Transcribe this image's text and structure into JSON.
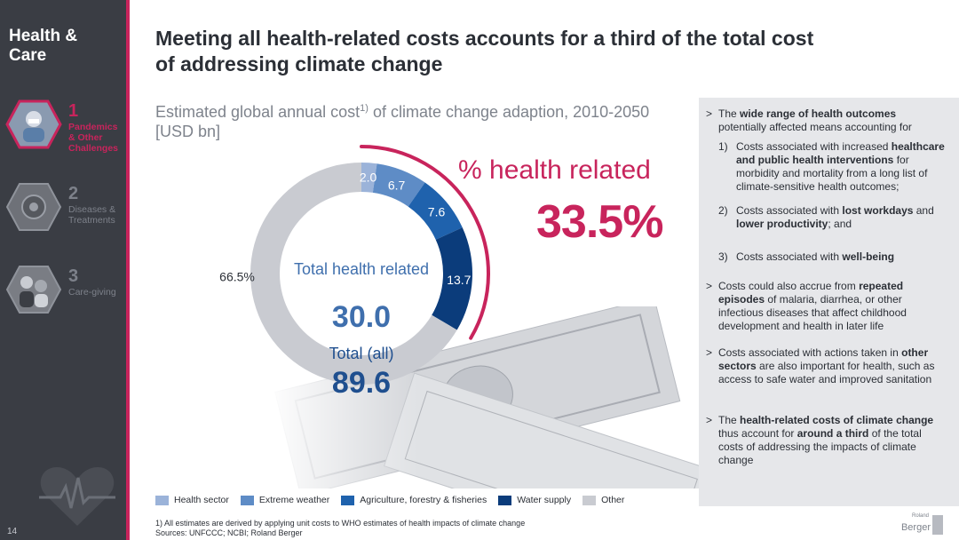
{
  "sidebar": {
    "section_title": "Health & Care",
    "items": [
      {
        "number": "1",
        "label": "Pandemics & Other Challenges",
        "active": true,
        "icon": "pandemics-photo-icon"
      },
      {
        "number": "2",
        "label": "Diseases & Treatments",
        "active": false,
        "icon": "diseases-photo-icon"
      },
      {
        "number": "3",
        "label": "Care-giving",
        "active": false,
        "icon": "caregiving-photo-icon"
      }
    ],
    "footer_icon": "heart-pulse-icon",
    "page_number": "14"
  },
  "header": {
    "title": "Meeting all health-related costs accounts for a third of the total cost of addressing climate change"
  },
  "chart_data": {
    "type": "pie",
    "title_main": "Estimated global annual cost",
    "title_sup": "1)",
    "title_rest": " of climate change adaption, 2010-2050 [USD bn]",
    "series": [
      {
        "name": "Health sector",
        "value": 2.0,
        "label": "2.0",
        "color": "#9bb3d9"
      },
      {
        "name": "Extreme weather",
        "value": 6.7,
        "label": "6.7",
        "color": "#5e8cc6"
      },
      {
        "name": "Agriculture, forestry & fisheries",
        "value": 7.6,
        "label": "7.6",
        "color": "#1f62ad"
      },
      {
        "name": "Water supply",
        "value": 13.7,
        "label": "13.7",
        "color": "#0b3c7b"
      },
      {
        "name": "Other",
        "value": 59.6,
        "label": "66.5%",
        "color": "#c9cbd1"
      }
    ],
    "highlight": {
      "title": "% health related",
      "value": "33.5%",
      "color": "#c8245c"
    },
    "center": {
      "label_related": "Total health related",
      "value_related": "30.0",
      "label_total": "Total (all)",
      "value_total": "89.6"
    },
    "legend_placement": "bottom"
  },
  "panel": {
    "bullets": [
      {
        "mark": ">",
        "html": "The <b>wide range of health outcomes</b> potentially affected means accounting for"
      },
      {
        "mark": "1)",
        "sub": true,
        "html": "Costs associated with increased <b>healthcare and public health interventions</b> for morbidity and mortality from a long list of climate-sensitive health outcomes;"
      },
      {
        "mark": "2)",
        "sub": true,
        "html": "Costs associated with <b>lost workdays</b> and <b>lower productivity</b>; and"
      },
      {
        "mark": "3)",
        "sub": true,
        "html": "Costs associated with <b>well-being</b>"
      },
      {
        "mark": ">",
        "html": "Costs could also accrue from <b>repeated episodes</b> of malaria, diarrhea, or other infectious diseases that affect childhood development and health in later life"
      },
      {
        "mark": ">",
        "html": "Costs associated with actions taken in <b>other sectors</b> are also important for health, such as access to safe water and improved sanitation"
      },
      {
        "mark": ">",
        "html": "The <b>health-related costs of climate change</b> thus account for <b>around a third</b> of the total costs of addressing the impacts of climate change"
      }
    ]
  },
  "footnotes": {
    "line1": "1) All estimates are derived by applying unit costs to WHO estimates of health impacts of climate change",
    "line2": "Sources: UNFCCC; NCBI; Roland Berger"
  },
  "logo": {
    "small": "Roland",
    "big": "Berger"
  }
}
